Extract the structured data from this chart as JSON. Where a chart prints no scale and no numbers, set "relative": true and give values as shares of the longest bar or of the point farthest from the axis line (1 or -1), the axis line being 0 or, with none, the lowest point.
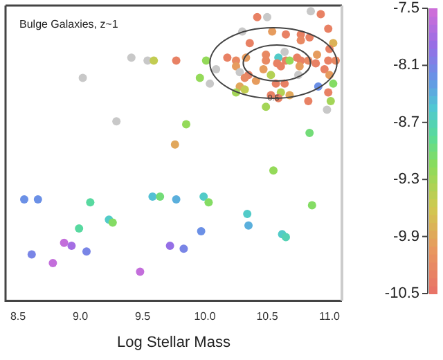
{
  "chart_data": {
    "type": "scatter",
    "title": "Bulge Galaxies, z~1",
    "xlabel": "Log Stellar Mass",
    "relative": true,
    "xlim": [
      8.4,
      11.1
    ],
    "xticks": [
      {
        "value": 8.5,
        "label": "8.5"
      },
      {
        "value": 9,
        "label": "9.0"
      },
      {
        "value": 9.5,
        "label": "9.5"
      },
      {
        "value": 10,
        "label": "10.0"
      },
      {
        "value": 10.5,
        "label": "10.5"
      },
      {
        "value": 11,
        "label": "11.0"
      }
    ],
    "clim": [
      -10.5,
      -7.5
    ],
    "cticks": [
      -10.5,
      -9.9,
      -9.3,
      -8.7,
      -8.1,
      -7.5
    ],
    "grid": false,
    "marker": "circle",
    "annotations": [
      {
        "text": "0.5",
        "x": 10.55,
        "y": 0.7
      }
    ],
    "series": [
      {
        "x": [
          9.41,
          9.54,
          9.59,
          9.77,
          10.01,
          9.96,
          10.04,
          9.02,
          9.29,
          9.85,
          9.76,
          10.85,
          10.93,
          10.42,
          10.5,
          10.3,
          10.54,
          10.65,
          10.77,
          10.77,
          10.84,
          10.99,
          11.03,
          10.36,
          11.0,
          10.18,
          10.25,
          10.33,
          10.49,
          10.59,
          10.65,
          10.68,
          10.74,
          10.77,
          10.83,
          10.9,
          10.89,
          10.99,
          11.05,
          10.64,
          10.49,
          10.58,
          10.61,
          10.76,
          10.25,
          10.09,
          10.28,
          10.96,
          11.0,
          10.75,
          10.53,
          10.47,
          10.35,
          10.32,
          10.41,
          10.57,
          10.64,
          11.03,
          10.91,
          10.28,
          10.32,
          10.61,
          10.68,
          10.53,
          10.59,
          10.99,
          10.83,
          11.01,
          10.25,
          10.49,
          10.98,
          10.84,
          10.55,
          8.55,
          8.66,
          9.08,
          9.58,
          9.64,
          9.77,
          9.99,
          10.03,
          8.99,
          9.23,
          9.26,
          8.87,
          8.93,
          8.61,
          9.05,
          8.78,
          9.72,
          9.83,
          9.97,
          9.48,
          10.34,
          10.35,
          10.62,
          10.65,
          10.86
        ],
        "values": [
          0.84,
          0.83,
          0.83,
          0.83,
          0.83,
          0.77,
          0.75,
          0.77,
          0.62,
          0.61,
          0.54,
          1.0,
          0.99,
          0.98,
          0.98,
          0.93,
          0.93,
          0.92,
          0.92,
          0.9,
          0.91,
          0.94,
          0.89,
          0.89,
          0.87,
          0.84,
          0.83,
          0.84,
          0.85,
          0.84,
          0.83,
          0.83,
          0.84,
          0.83,
          0.83,
          0.85,
          0.82,
          0.83,
          0.83,
          0.86,
          0.83,
          0.82,
          0.81,
          0.81,
          0.81,
          0.8,
          0.79,
          0.8,
          0.78,
          0.78,
          0.78,
          0.8,
          0.78,
          0.77,
          0.76,
          0.75,
          0.75,
          0.75,
          0.74,
          0.74,
          0.73,
          0.72,
          0.71,
          0.71,
          0.7,
          0.72,
          0.69,
          0.69,
          0.72,
          0.67,
          0.66,
          0.58,
          0.45,
          0.35,
          0.35,
          0.34,
          0.36,
          0.36,
          0.35,
          0.36,
          0.34,
          0.25,
          0.28,
          0.27,
          0.2,
          0.19,
          0.16,
          0.17,
          0.13,
          0.19,
          0.18,
          0.24,
          0.1,
          0.3,
          0.26,
          0.23,
          0.22,
          0.33
        ],
        "cvalues": [
          null,
          null,
          -9.5,
          -10.3,
          -9.2,
          -9.2,
          null,
          null,
          null,
          -9.2,
          -9.9,
          null,
          -10.3,
          -10.3,
          null,
          null,
          -10.0,
          -10.3,
          -10.3,
          -10.2,
          -10.3,
          -10.3,
          -9.8,
          -10.3,
          -10.3,
          -10.3,
          -10.2,
          -10.0,
          -10.2,
          -8.6,
          -10.3,
          -9.2,
          -10.3,
          -10.3,
          -10.2,
          -10.0,
          -10.3,
          -10.3,
          -10.2,
          null,
          -10.2,
          -10.3,
          -10.3,
          -10.0,
          -10.0,
          null,
          null,
          -10.3,
          -10.0,
          null,
          -9.4,
          -10.0,
          -10.3,
          -10.2,
          -10.0,
          -10.3,
          -10.3,
          -9.1,
          -8.2,
          -9.9,
          -9.5,
          -9.4,
          -9.9,
          -10.3,
          -10.3,
          -10.3,
          -10.3,
          -9.3,
          -9.3,
          -9.3,
          null,
          -9.0,
          -9.2,
          -8.2,
          -8.2,
          -8.8,
          -8.5,
          -9.0,
          -8.4,
          -8.6,
          -9.1,
          -8.8,
          -8.6,
          -9.1,
          -7.6,
          -7.8,
          -8.1,
          -8.1,
          -7.6,
          -7.9,
          -8.1,
          -8.2,
          -7.6,
          -8.6,
          -8.4,
          -8.6,
          -8.7,
          -9.1
        ]
      }
    ]
  }
}
